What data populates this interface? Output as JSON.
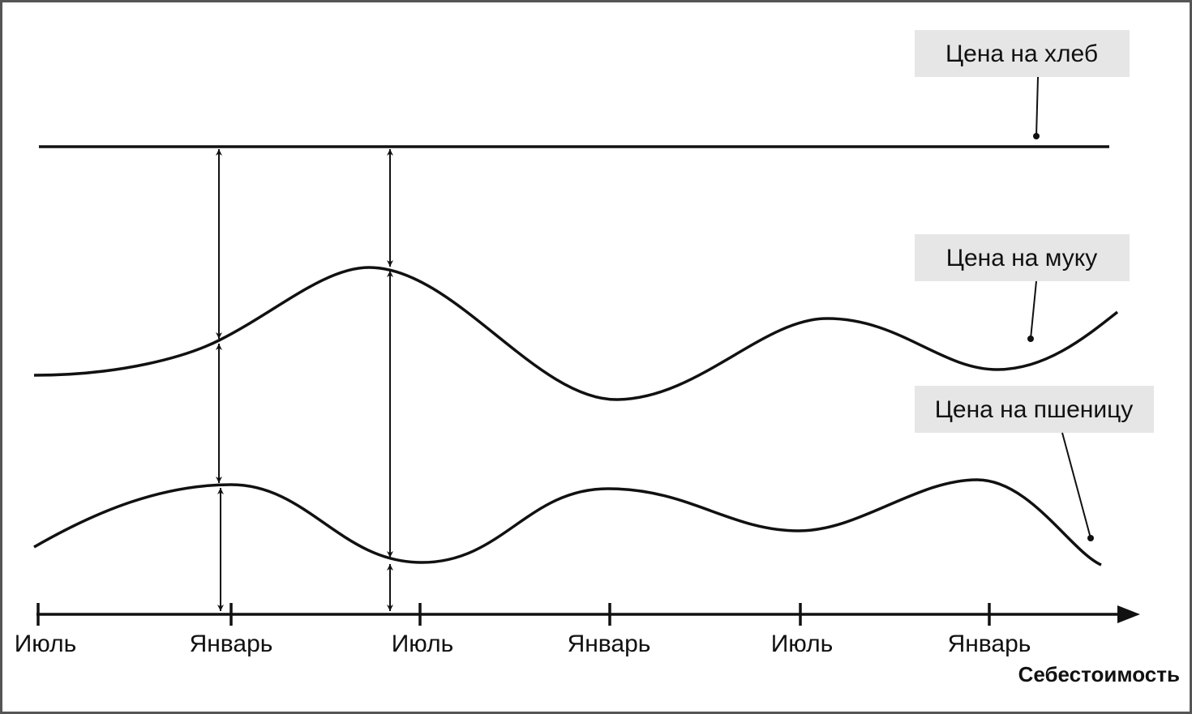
{
  "labels": [
    "Цена на хлеб",
    "Цена на муку",
    "Цена на пшеницу"
  ],
  "axis": {
    "ticks": [
      "Июль",
      "Январь",
      "Июль",
      "Январь",
      "Июль",
      "Январь"
    ],
    "title": "Себестоимость"
  }
}
